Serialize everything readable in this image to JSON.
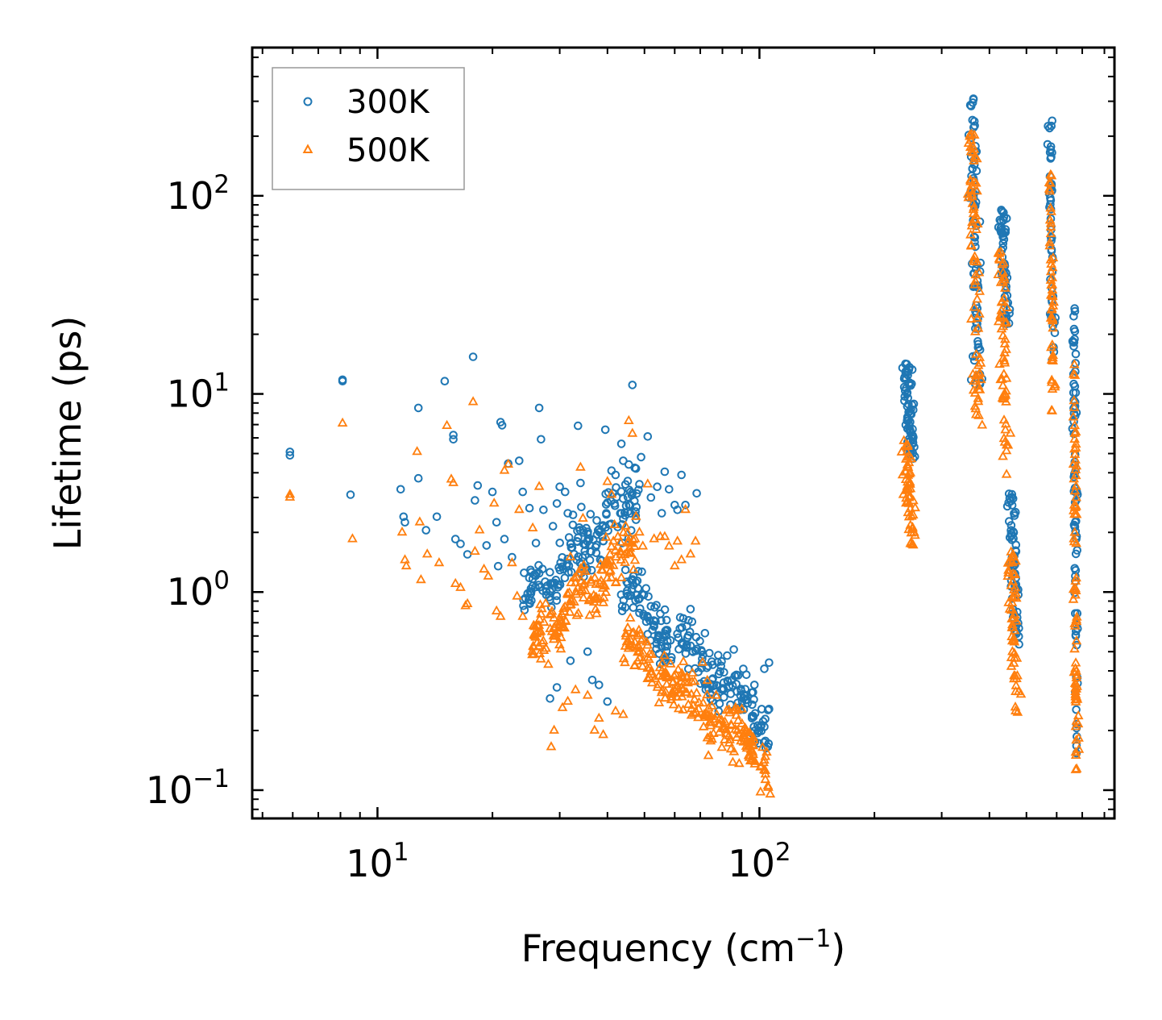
{
  "chart_data": {
    "type": "scatter",
    "title": "",
    "xlabel": "Frequency (cm",
    "xlabel_sup": "−1",
    "xlabel_end": ")",
    "ylabel": "Lifetime (ps)",
    "xscale": "log",
    "yscale": "log",
    "xlim": [
      4.7,
      850
    ],
    "ylim": [
      0.072,
      560
    ],
    "x_ticks": [
      {
        "value": 10,
        "base": "10",
        "exp": "1"
      },
      {
        "value": 100,
        "base": "10",
        "exp": "2"
      }
    ],
    "y_ticks": [
      {
        "value": 0.1,
        "base": "10",
        "exp": "−1"
      },
      {
        "value": 1,
        "base": "10",
        "exp": "0"
      },
      {
        "value": 10,
        "base": "10",
        "exp": "1"
      },
      {
        "value": 100,
        "base": "10",
        "exp": "2"
      }
    ],
    "legend_position": "top-left",
    "series": [
      {
        "name": "300K",
        "marker": "circle",
        "color": "#1f77b4",
        "points": [
          [
            5.9,
            5.1
          ],
          [
            5.9,
            4.9
          ],
          [
            8.1,
            11.8
          ],
          [
            8.1,
            11.6
          ],
          [
            8.5,
            3.1
          ],
          [
            11.5,
            3.3
          ],
          [
            11.7,
            2.4
          ],
          [
            11.8,
            2.25
          ],
          [
            12.8,
            8.5
          ],
          [
            12.8,
            3.75
          ],
          [
            13.4,
            2.05
          ],
          [
            14.3,
            2.4
          ],
          [
            15.0,
            11.6
          ],
          [
            15.8,
            6.2
          ],
          [
            15.8,
            5.9
          ],
          [
            16.0,
            1.85
          ],
          [
            16.5,
            1.75
          ],
          [
            17.2,
            1.55
          ],
          [
            17.8,
            15.4
          ],
          [
            18.0,
            2.9
          ],
          [
            18.3,
            3.45
          ],
          [
            19.3,
            1.72
          ],
          [
            20.0,
            3.2
          ],
          [
            20.5,
            2.25
          ],
          [
            20.7,
            1.35
          ],
          [
            21.0,
            7.2
          ],
          [
            21.2,
            6.95
          ],
          [
            21.5,
            1.85
          ],
          [
            22.0,
            4.45
          ],
          [
            22.5,
            1.5
          ],
          [
            23.5,
            4.6
          ],
          [
            24.0,
            3.2
          ],
          [
            24.2,
            1.25
          ],
          [
            25.0,
            2.65
          ],
          [
            26.5,
            8.5
          ],
          [
            26.8,
            5.9
          ],
          [
            27.2,
            2.6
          ],
          [
            28.3,
            0.29
          ],
          [
            28.8,
            2.15
          ],
          [
            29.5,
            0.33
          ],
          [
            29.5,
            2.8
          ],
          [
            30.0,
            3.4
          ],
          [
            31.0,
            3.2
          ],
          [
            31.5,
            2.5
          ],
          [
            32.0,
            0.45
          ],
          [
            32.5,
            2.45
          ],
          [
            33.5,
            6.9
          ],
          [
            34.0,
            3.55
          ],
          [
            35.5,
            0.5
          ],
          [
            36.0,
            1.45
          ],
          [
            36.5,
            0.36
          ],
          [
            37.5,
            2.3
          ],
          [
            38.0,
            0.34
          ],
          [
            39.5,
            6.6
          ],
          [
            40.0,
            0.28
          ],
          [
            41.0,
            4.1
          ],
          [
            42.0,
            3.9
          ],
          [
            43.5,
            5.6
          ],
          [
            44.0,
            4.6
          ],
          [
            45.5,
            4.4
          ],
          [
            46.0,
            3.2
          ],
          [
            46.5,
            11.1
          ],
          [
            47.5,
            4.2
          ],
          [
            48.5,
            3.5
          ],
          [
            49.0,
            4.8
          ],
          [
            51.0,
            6.1
          ],
          [
            52.0,
            3.0
          ],
          [
            54.0,
            3.4
          ],
          [
            55.5,
            2.5
          ],
          [
            56.5,
            4.05
          ],
          [
            58.0,
            3.3
          ],
          [
            60.0,
            2.75
          ],
          [
            61.0,
            2.6
          ],
          [
            62.5,
            3.9
          ],
          [
            64.0,
            2.75
          ],
          [
            66.0,
            0.82
          ],
          [
            68.5,
            3.15
          ],
          [
            72.0,
            0.62
          ],
          [
            78.0,
            0.48
          ],
          [
            88.0,
            0.38
          ],
          [
            97.0,
            0.34
          ],
          [
            103.0,
            0.41
          ],
          [
            106.0,
            0.44
          ]
        ],
        "clusters": [
          {
            "x": [
              24,
              48
            ],
            "y": [
              0.85,
              3.2
            ],
            "trend": "up",
            "count": 170
          },
          {
            "x": [
              44,
              106
            ],
            "y": [
              0.22,
              1.0
            ],
            "trend": "down",
            "count": 220
          }
        ],
        "bands": [
          {
            "x": 246,
            "y": [
              4.5,
              14.3
            ],
            "count": 70,
            "spread": 0.012
          },
          {
            "x": 367,
            "y": [
              11,
              355
            ],
            "count": 80,
            "spread": 0.012
          },
          {
            "x": 437,
            "y": [
              22,
              86
            ],
            "count": 55,
            "spread": 0.011
          },
          {
            "x": 464,
            "y": [
              0.5,
              3.2
            ],
            "count": 60,
            "spread": 0.012
          },
          {
            "x": 582,
            "y": [
              14,
              240
            ],
            "count": 50,
            "spread": 0.006
          },
          {
            "x": 672,
            "y": [
              0.15,
              27
            ],
            "count": 80,
            "spread": 0.005
          }
        ]
      },
      {
        "name": "500K",
        "marker": "triangle",
        "color": "#ff7f0e",
        "points": [
          [
            5.9,
            3.1
          ],
          [
            5.9,
            3.0
          ],
          [
            8.1,
            7.1
          ],
          [
            8.6,
            1.85
          ],
          [
            11.6,
            2.0
          ],
          [
            11.8,
            1.45
          ],
          [
            11.9,
            1.35
          ],
          [
            12.7,
            5.1
          ],
          [
            12.9,
            2.25
          ],
          [
            13.0,
            1.15
          ],
          [
            13.5,
            1.55
          ],
          [
            14.5,
            1.4
          ],
          [
            15.2,
            6.9
          ],
          [
            15.6,
            3.7
          ],
          [
            15.8,
            3.55
          ],
          [
            16.0,
            1.1
          ],
          [
            16.5,
            1.05
          ],
          [
            17.0,
            0.85
          ],
          [
            17.2,
            0.87
          ],
          [
            17.8,
            9.1
          ],
          [
            18.0,
            1.6
          ],
          [
            18.5,
            2.05
          ],
          [
            19.0,
            1.3
          ],
          [
            19.5,
            1.2
          ],
          [
            20.2,
            2.8
          ],
          [
            20.5,
            0.8
          ],
          [
            21.0,
            0.75
          ],
          [
            21.5,
            4.1
          ],
          [
            22.0,
            4.4
          ],
          [
            22.5,
            1.4
          ],
          [
            23.2,
            0.95
          ],
          [
            23.5,
            2.6
          ],
          [
            24.0,
            0.75
          ],
          [
            25.5,
            2.1
          ],
          [
            26.5,
            3.4
          ],
          [
            27.0,
            0.55
          ],
          [
            28.0,
            0.43
          ],
          [
            28.5,
            0.165
          ],
          [
            29.0,
            0.2
          ],
          [
            30.5,
            0.26
          ],
          [
            31.5,
            0.28
          ],
          [
            32.0,
            1.5
          ],
          [
            33.0,
            0.32
          ],
          [
            34.0,
            4.25
          ],
          [
            34.5,
            2.35
          ],
          [
            35.5,
            0.3
          ],
          [
            37.0,
            0.2
          ],
          [
            38.0,
            0.23
          ],
          [
            39.0,
            0.19
          ],
          [
            40.0,
            3.6
          ],
          [
            41.0,
            3.1
          ],
          [
            42.0,
            0.25
          ],
          [
            44.0,
            0.24
          ],
          [
            45.5,
            7.3
          ],
          [
            46.5,
            6.3
          ],
          [
            47.5,
            2.4
          ],
          [
            48.5,
            2.0
          ],
          [
            49.5,
            1.7
          ],
          [
            51.0,
            3.5
          ],
          [
            53.0,
            1.85
          ],
          [
            55.0,
            1.9
          ],
          [
            56.5,
            1.9
          ],
          [
            58.0,
            1.7
          ],
          [
            60.0,
            1.35
          ],
          [
            61.0,
            1.8
          ],
          [
            62.5,
            1.45
          ],
          [
            64.0,
            2.6
          ],
          [
            66.0,
            1.55
          ],
          [
            68.0,
            1.8
          ],
          [
            71.0,
            0.44
          ],
          [
            77.0,
            0.3
          ]
        ],
        "clusters": [
          {
            "x": [
              25,
              48
            ],
            "y": [
              0.5,
              1.8
            ],
            "trend": "up",
            "count": 170
          },
          {
            "x": [
              44,
              108
            ],
            "y": [
              0.13,
              0.55
            ],
            "trend": "down",
            "count": 230
          }
        ],
        "bands": [
          {
            "x": 246,
            "y": [
              1.7,
              5.8
            ],
            "count": 60,
            "spread": 0.012
          },
          {
            "x": 367,
            "y": [
              6.2,
              210
            ],
            "count": 80,
            "spread": 0.012
          },
          {
            "x": 437,
            "y": [
              3.9,
              52
            ],
            "count": 60,
            "spread": 0.011
          },
          {
            "x": 464,
            "y": [
              0.24,
              1.65
            ],
            "count": 60,
            "spread": 0.012
          },
          {
            "x": 582,
            "y": [
              7.5,
              130
            ],
            "count": 50,
            "spread": 0.006
          },
          {
            "x": 672,
            "y": [
              0.11,
              15.5
            ],
            "count": 80,
            "spread": 0.005
          }
        ]
      }
    ]
  }
}
